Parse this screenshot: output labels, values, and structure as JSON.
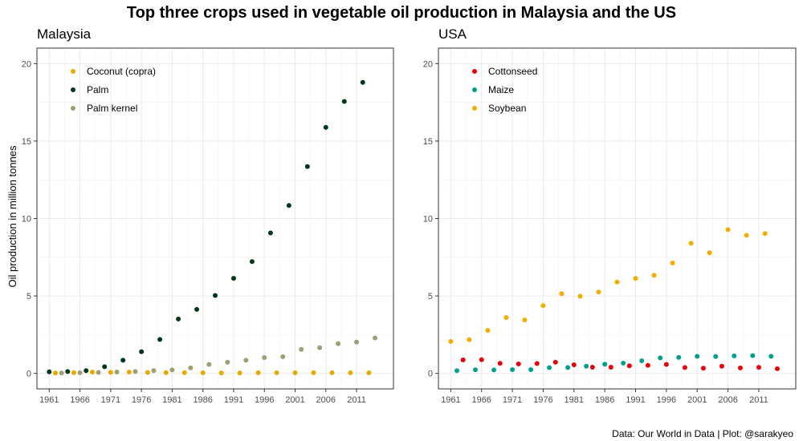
{
  "title": "Top three crops used in vegetable oil production in Malaysia and the US",
  "ylabel": "Oil production in million tonnes",
  "caption": "Data: Our World in Data | Plot: @sarakyeo",
  "chart_data": [
    {
      "type": "scatter",
      "title": "Malaysia",
      "xticks": [
        1961,
        1966,
        1971,
        1976,
        1981,
        1986,
        1991,
        1996,
        2001,
        2006,
        2011
      ],
      "yticks": [
        0,
        5,
        10,
        15,
        20
      ],
      "xlim": [
        1959,
        2017
      ],
      "ylim": [
        -1,
        21
      ],
      "grid": true,
      "legend_position": "top-left",
      "series": [
        {
          "name": "Coconut (copra)",
          "color": "#E6AB02",
          "points": [
            [
              1962,
              0.03
            ],
            [
              1965,
              0.05
            ],
            [
              1968,
              0.08
            ],
            [
              1971,
              0.07
            ],
            [
              1974,
              0.09
            ],
            [
              1977,
              0.06
            ],
            [
              1980,
              0.05
            ],
            [
              1983,
              0.05
            ],
            [
              1986,
              0.04
            ],
            [
              1989,
              0.03
            ],
            [
              1992,
              0.03
            ],
            [
              1995,
              0.04
            ],
            [
              1998,
              0.04
            ],
            [
              2001,
              0.04
            ],
            [
              2004,
              0.04
            ],
            [
              2007,
              0.04
            ],
            [
              2010,
              0.04
            ],
            [
              2013,
              0.04
            ]
          ]
        },
        {
          "name": "Palm",
          "color": "#00391A",
          "points": [
            [
              1961,
              0.1
            ],
            [
              1964,
              0.12
            ],
            [
              1967,
              0.18
            ],
            [
              1970,
              0.43
            ],
            [
              1973,
              0.85
            ],
            [
              1976,
              1.4
            ],
            [
              1979,
              2.19
            ],
            [
              1982,
              3.51
            ],
            [
              1985,
              4.13
            ],
            [
              1988,
              5.03
            ],
            [
              1991,
              6.14
            ],
            [
              1994,
              7.22
            ],
            [
              1997,
              9.07
            ],
            [
              2000,
              10.84
            ],
            [
              2003,
              13.35
            ],
            [
              2006,
              15.88
            ],
            [
              2009,
              17.56
            ],
            [
              2012,
              18.79
            ]
          ]
        },
        {
          "name": "Palm kernel",
          "color": "#A09E73",
          "points": [
            [
              1963,
              0.02
            ],
            [
              1966,
              0.04
            ],
            [
              1969,
              0.06
            ],
            [
              1972,
              0.09
            ],
            [
              1975,
              0.12
            ],
            [
              1978,
              0.18
            ],
            [
              1981,
              0.22
            ],
            [
              1984,
              0.36
            ],
            [
              1987,
              0.58
            ],
            [
              1990,
              0.72
            ],
            [
              1993,
              0.85
            ],
            [
              1996,
              1.02
            ],
            [
              1999,
              1.08
            ],
            [
              2002,
              1.55
            ],
            [
              2005,
              1.66
            ],
            [
              2008,
              1.92
            ],
            [
              2011,
              2.02
            ],
            [
              2014,
              2.29
            ]
          ]
        }
      ]
    },
    {
      "type": "scatter",
      "title": "USA",
      "xticks": [
        1961,
        1966,
        1971,
        1976,
        1981,
        1986,
        1991,
        1996,
        2001,
        2006,
        2011
      ],
      "yticks": [
        0,
        5,
        10,
        15,
        20
      ],
      "xlim": [
        1959,
        2017
      ],
      "ylim": [
        -1,
        21
      ],
      "grid": true,
      "legend_position": "top-left",
      "series": [
        {
          "name": "Cottonseed",
          "color": "#E7000B",
          "points": [
            [
              1963,
              0.87
            ],
            [
              1966,
              0.88
            ],
            [
              1969,
              0.65
            ],
            [
              1972,
              0.61
            ],
            [
              1975,
              0.64
            ],
            [
              1978,
              0.72
            ],
            [
              1981,
              0.55
            ],
            [
              1984,
              0.4
            ],
            [
              1987,
              0.4
            ],
            [
              1990,
              0.49
            ],
            [
              1993,
              0.52
            ],
            [
              1996,
              0.58
            ],
            [
              1999,
              0.38
            ],
            [
              2002,
              0.33
            ],
            [
              2005,
              0.46
            ],
            [
              2008,
              0.35
            ],
            [
              2011,
              0.39
            ],
            [
              2014,
              0.3
            ]
          ]
        },
        {
          "name": "Maize",
          "color": "#00A08A",
          "points": [
            [
              1962,
              0.18
            ],
            [
              1965,
              0.23
            ],
            [
              1968,
              0.22
            ],
            [
              1971,
              0.24
            ],
            [
              1974,
              0.24
            ],
            [
              1977,
              0.37
            ],
            [
              1980,
              0.38
            ],
            [
              1983,
              0.46
            ],
            [
              1986,
              0.59
            ],
            [
              1989,
              0.66
            ],
            [
              1992,
              0.81
            ],
            [
              1995,
              1.0
            ],
            [
              1998,
              1.03
            ],
            [
              2001,
              1.1
            ],
            [
              2004,
              1.09
            ],
            [
              2007,
              1.13
            ],
            [
              2010,
              1.15
            ],
            [
              2013,
              1.1
            ]
          ]
        },
        {
          "name": "Soybean",
          "color": "#F2AD00",
          "points": [
            [
              1961,
              2.06
            ],
            [
              1964,
              2.18
            ],
            [
              1967,
              2.77
            ],
            [
              1970,
              3.6
            ],
            [
              1973,
              3.45
            ],
            [
              1976,
              4.38
            ],
            [
              1979,
              5.15
            ],
            [
              1982,
              4.98
            ],
            [
              1985,
              5.25
            ],
            [
              1988,
              5.9
            ],
            [
              1991,
              6.13
            ],
            [
              1994,
              6.33
            ],
            [
              1997,
              7.13
            ],
            [
              2000,
              8.4
            ],
            [
              2003,
              7.79
            ],
            [
              2006,
              9.28
            ],
            [
              2009,
              8.91
            ],
            [
              2012,
              9.03
            ]
          ]
        }
      ]
    }
  ]
}
